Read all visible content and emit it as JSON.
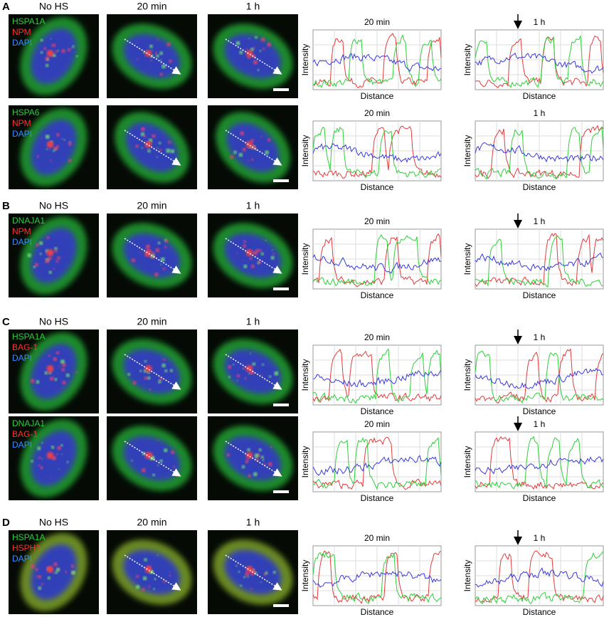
{
  "rows": [
    {
      "letter": "A",
      "headers": [
        "No HS",
        "20 min",
        "1 h"
      ],
      "stains": [
        "HSPA1A",
        "NPM",
        "DAPI"
      ],
      "plots": [
        {
          "title": "20 min",
          "y_label": "Intensity",
          "x_label": "Distance"
        },
        {
          "title": "1 h",
          "y_label": "Intensity",
          "x_label": "Distance"
        }
      ]
    },
    {
      "stains": [
        "HSPA6",
        "NPM",
        "DAPI"
      ],
      "plots": [
        {
          "title": "20 min",
          "y_label": "Intensity",
          "x_label": "Distance"
        },
        {
          "title": "1 h",
          "y_label": "Intensity",
          "x_label": "Distance"
        }
      ]
    },
    {
      "letter": "B",
      "headers": [
        "No HS",
        "20 min",
        "1 h"
      ],
      "stains": [
        "DNAJA1",
        "NPM",
        "DAPI"
      ],
      "plots": [
        {
          "title": "20 min",
          "y_label": "Intensity",
          "x_label": "Distance"
        },
        {
          "title": "1 h",
          "y_label": "Intensity",
          "x_label": "Distance"
        }
      ]
    },
    {
      "letter": "C",
      "headers": [
        "No HS",
        "20 min",
        "1 h"
      ],
      "stains": [
        "HSPA1A",
        "BAG-1",
        "DAPI"
      ],
      "plots": [
        {
          "title": "20 min",
          "y_label": "Intensity",
          "x_label": "Distance"
        },
        {
          "title": "1 h",
          "y_label": "Intensity",
          "x_label": "Distance"
        }
      ]
    },
    {
      "stains": [
        "DNAJA1",
        "BAG-1",
        "DAPI"
      ],
      "plots": [
        {
          "title": "20 min",
          "y_label": "Intensity",
          "x_label": "Distance"
        },
        {
          "title": "1 h",
          "y_label": "Intensity",
          "x_label": "Distance"
        }
      ]
    },
    {
      "letter": "D",
      "headers": [
        "No HS",
        "20 min",
        "1 h"
      ],
      "stains": [
        "HSPA1A",
        "HSPH1",
        "DAPI"
      ],
      "plots": [
        {
          "title": "20 min",
          "y_label": "Intensity",
          "x_label": "Distance"
        },
        {
          "title": "1 h",
          "y_label": "Intensity",
          "x_label": "Distance"
        }
      ]
    }
  ]
}
